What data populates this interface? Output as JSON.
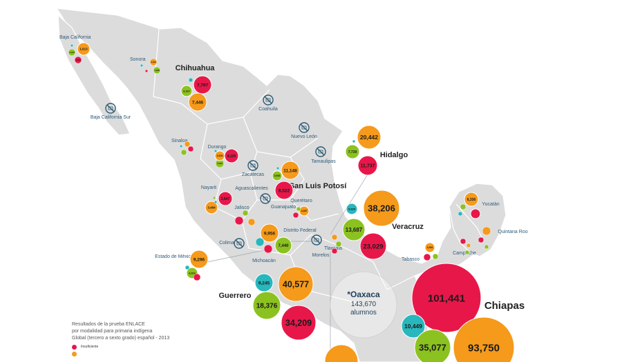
{
  "colors": {
    "insuficiente": "#e8174a",
    "elemental": "#f59a1b",
    "bueno": "#8cc220",
    "excelente": "#27b7bd",
    "land": "#dcdcdc",
    "border": "#ffffff",
    "no_data_icon": "#2d5b73"
  },
  "states": [
    {
      "id": "baja-california",
      "name": "Baja California"
    },
    {
      "id": "baja-california-sur",
      "name": "Baja California Sur"
    },
    {
      "id": "sonora",
      "name": "Sonora"
    },
    {
      "id": "chihuahua",
      "name": "Chihuahua",
      "emphasis": "big"
    },
    {
      "id": "coahuila",
      "name": "Coahuila"
    },
    {
      "id": "nuevo-leon",
      "name": "Nuevo León"
    },
    {
      "id": "tamaulipas",
      "name": "Tamaulipas"
    },
    {
      "id": "sinaloa",
      "name": "Sinaloa"
    },
    {
      "id": "durango",
      "name": "Durango"
    },
    {
      "id": "zacatecas",
      "name": "Zacatecas"
    },
    {
      "id": "san-luis-potosi",
      "name": "San Luis Potosí",
      "emphasis": "big"
    },
    {
      "id": "hidalgo",
      "name": "Hidalgo",
      "emphasis": "big"
    },
    {
      "id": "nayarit",
      "name": "Nayarit"
    },
    {
      "id": "aguascalientes",
      "name": "Aguascalientes"
    },
    {
      "id": "jalisco",
      "name": "Jalisco"
    },
    {
      "id": "queretaro",
      "name": "Querétaro"
    },
    {
      "id": "guanajuato",
      "name": "Guanajuato"
    },
    {
      "id": "veracruz",
      "name": "Veracruz",
      "emphasis": "big"
    },
    {
      "id": "colima",
      "name": "Colima"
    },
    {
      "id": "distrito-federal",
      "name": "Distrito Federal"
    },
    {
      "id": "michoacan",
      "name": "Michoacán"
    },
    {
      "id": "estado-de-mexico",
      "name": "Estado de México"
    },
    {
      "id": "morelos",
      "name": "Morelos"
    },
    {
      "id": "tlaxcala",
      "name": "Tlaxcala"
    },
    {
      "id": "guerrero",
      "name": "Guerrero",
      "emphasis": "big"
    },
    {
      "id": "tabasco",
      "name": "Tabasco"
    },
    {
      "id": "campeche",
      "name": "Campeche"
    },
    {
      "id": "yucatan",
      "name": "Yucatán"
    },
    {
      "id": "quintana-roo",
      "name": "Quintana Roo"
    },
    {
      "id": "chiapas",
      "name": "Chiapas",
      "emphasis": "huge"
    }
  ],
  "oaxaca_note": {
    "title": "*Oaxaca",
    "count": "143,670",
    "unit": "alumnos"
  },
  "bubbles": [
    {
      "state": "baja-california",
      "level": "elemental",
      "value": "1,613"
    },
    {
      "state": "baja-california",
      "level": "bueno",
      "value": "2,196"
    },
    {
      "state": "baja-california",
      "level": "insuficiente",
      "value": "2,256"
    },
    {
      "state": "baja-california",
      "level": "excelente",
      "value": null
    },
    {
      "state": "sonora",
      "level": "elemental",
      "value": "3,463"
    },
    {
      "state": "sonora",
      "level": "bueno",
      "value": "1,838"
    },
    {
      "state": "sonora",
      "level": "insuficiente",
      "value": null
    },
    {
      "state": "sonora",
      "level": "excelente",
      "value": null
    },
    {
      "state": "chihuahua",
      "level": "insuficiente",
      "value": "7,797"
    },
    {
      "state": "chihuahua",
      "level": "bueno",
      "value": "3,337"
    },
    {
      "state": "chihuahua",
      "level": "elemental",
      "value": "7,446"
    },
    {
      "state": "chihuahua",
      "level": "excelente",
      "value": null
    },
    {
      "state": "sinaloa",
      "level": "elemental",
      "value": null
    },
    {
      "state": "sinaloa",
      "level": "bueno",
      "value": null
    },
    {
      "state": "sinaloa",
      "level": "insuficiente",
      "value": null
    },
    {
      "state": "sinaloa",
      "level": "excelente",
      "value": null
    },
    {
      "state": "durango",
      "level": "insuficiente",
      "value": "4,120"
    },
    {
      "state": "durango",
      "level": "bueno",
      "value": "2,025"
    },
    {
      "state": "durango",
      "level": "elemental",
      "value": "3,616"
    },
    {
      "state": "durango",
      "level": "excelente",
      "value": null
    },
    {
      "state": "hidalgo",
      "level": "elemental",
      "value": "20,442"
    },
    {
      "state": "hidalgo",
      "level": "bueno",
      "value": "7,739"
    },
    {
      "state": "hidalgo",
      "level": "insuficiente",
      "value": "11,737"
    },
    {
      "state": "hidalgo",
      "level": "excelente",
      "value": null
    },
    {
      "state": "san-luis-potosi",
      "level": "elemental",
      "value": "11,148"
    },
    {
      "state": "san-luis-potosi",
      "level": "bueno",
      "value": "3,545"
    },
    {
      "state": "san-luis-potosi",
      "level": "insuficiente",
      "value": "8,522"
    },
    {
      "state": "san-luis-potosi",
      "level": "excelente",
      "value": null
    },
    {
      "state": "nayarit",
      "level": "insuficiente",
      "value": "3,647"
    },
    {
      "state": "nayarit",
      "level": "elemental",
      "value": "3,484"
    },
    {
      "state": "nayarit",
      "level": "bueno",
      "value": null
    },
    {
      "state": "nayarit",
      "level": "excelente",
      "value": null
    },
    {
      "state": "jalisco",
      "level": "insuficiente",
      "value": null
    },
    {
      "state": "jalisco",
      "level": "elemental",
      "value": null
    },
    {
      "state": "jalisco",
      "level": "bueno",
      "value": null
    },
    {
      "state": "queretaro",
      "level": "elemental",
      "value": "3,387"
    },
    {
      "state": "queretaro",
      "level": "insuficiente",
      "value": null
    },
    {
      "state": "queretaro",
      "level": "bueno",
      "value": null
    },
    {
      "state": "veracruz",
      "level": "elemental",
      "value": "38,206"
    },
    {
      "state": "veracruz",
      "level": "excelente",
      "value": "5,839"
    },
    {
      "state": "veracruz",
      "level": "bueno",
      "value": "13,687"
    },
    {
      "state": "veracruz",
      "level": "insuficiente",
      "value": "23,029"
    },
    {
      "state": "michoacan",
      "level": "elemental",
      "value": "9,956"
    },
    {
      "state": "michoacan",
      "level": "bueno",
      "value": "7,440"
    },
    {
      "state": "michoacan",
      "level": "insuficiente",
      "value": null
    },
    {
      "state": "michoacan",
      "level": "excelente",
      "value": null
    },
    {
      "state": "estado-de-mexico",
      "level": "elemental",
      "value": "9,296"
    },
    {
      "state": "estado-de-mexico",
      "level": "bueno",
      "value": "4,916"
    },
    {
      "state": "estado-de-mexico",
      "level": "insuficiente",
      "value": null
    },
    {
      "state": "estado-de-mexico",
      "level": "excelente",
      "value": null
    },
    {
      "state": "puebla",
      "level": "elemental",
      "value": null
    },
    {
      "state": "puebla",
      "level": "bueno",
      "value": null
    },
    {
      "state": "puebla",
      "level": "insuficiente",
      "value": null
    },
    {
      "state": "guerrero",
      "level": "excelente",
      "value": "9,245"
    },
    {
      "state": "guerrero",
      "level": "elemental",
      "value": "40,577"
    },
    {
      "state": "guerrero",
      "level": "bueno",
      "value": "18,376"
    },
    {
      "state": "guerrero",
      "level": "insuficiente",
      "value": "34,209"
    },
    {
      "state": "yucatan",
      "level": "elemental",
      "value": "6,336"
    },
    {
      "state": "yucatan",
      "level": "insuficiente",
      "value": null
    },
    {
      "state": "yucatan",
      "level": "bueno",
      "value": null
    },
    {
      "state": "yucatan",
      "level": "excelente",
      "value": null
    },
    {
      "state": "quintana-roo",
      "level": "elemental",
      "value": null
    },
    {
      "state": "quintana-roo",
      "level": "insuficiente",
      "value": null
    },
    {
      "state": "quintana-roo",
      "level": "bueno",
      "value": null
    },
    {
      "state": "tabasco",
      "level": "elemental",
      "value": "3,364"
    },
    {
      "state": "tabasco",
      "level": "insuficiente",
      "value": null
    },
    {
      "state": "tabasco",
      "level": "bueno",
      "value": null
    },
    {
      "state": "campeche",
      "level": "insuficiente",
      "value": null
    },
    {
      "state": "campeche",
      "level": "elemental",
      "value": null
    },
    {
      "state": "campeche",
      "level": "bueno",
      "value": null
    },
    {
      "state": "chiapas",
      "level": "insuficiente",
      "value": "101,441"
    },
    {
      "state": "chiapas",
      "level": "excelente",
      "value": "10,449"
    },
    {
      "state": "chiapas",
      "level": "bueno",
      "value": "35,077"
    },
    {
      "state": "chiapas",
      "level": "elemental",
      "value": "93,750"
    },
    {
      "state": "oaxaca",
      "level": "elemental",
      "value": null
    }
  ],
  "no_data_states": [
    "baja-california-sur",
    "coahuila",
    "nuevo-leon",
    "tamaulipas",
    "zacatecas",
    "aguascalientes",
    "colima",
    "distrito-federal"
  ],
  "legend": {
    "title_lines": [
      "Resultados de la prueba ENLACE",
      "por modalidad para primaria indígena",
      "Global (tercero a sexto grado) español - 2013"
    ],
    "entries": [
      {
        "level": "insuficiente",
        "label": "Insuficiente"
      },
      {
        "level": "elemental",
        "label": ""
      }
    ]
  }
}
